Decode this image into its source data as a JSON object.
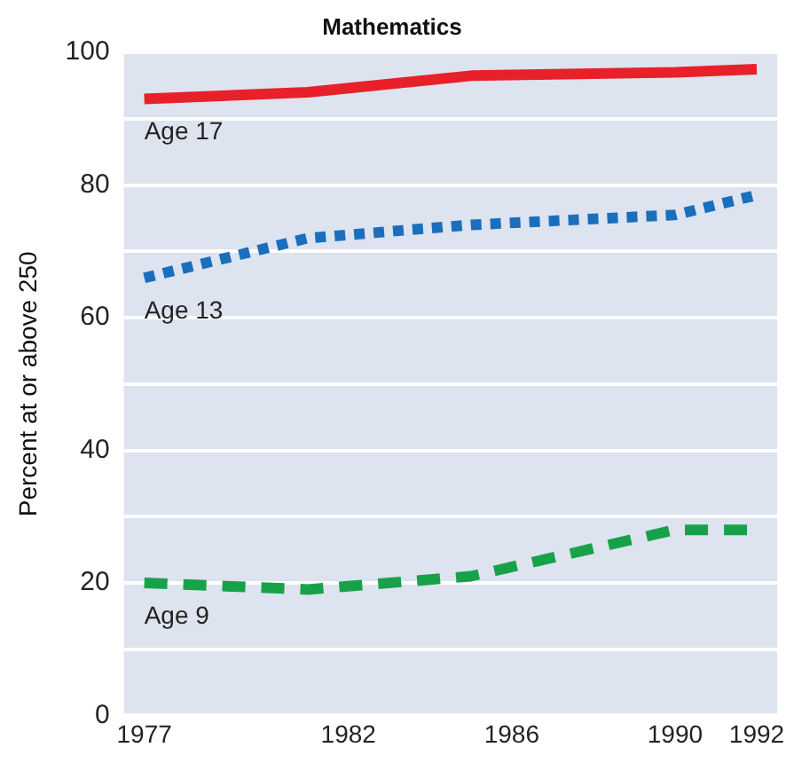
{
  "chart_data": {
    "type": "line",
    "title": "Mathematics",
    "ylabel": "Percent at or above 250",
    "xlim": [
      1976.5,
      1992.5
    ],
    "xticks": [
      1977,
      1982,
      1986,
      1990,
      1992
    ],
    "ylim": [
      0,
      100
    ],
    "yticks": [
      0,
      {
        "value": 10,
        "label": null
      },
      20,
      {
        "value": 30,
        "label": null
      },
      40,
      {
        "value": 50,
        "label": null
      },
      60,
      {
        "value": 70,
        "label": null
      },
      80,
      {
        "value": 90,
        "label": null
      },
      100
    ],
    "grid": "y",
    "legend": false,
    "marker": "none",
    "series": [
      {
        "name": "Age 17",
        "color": "#e8202a",
        "line_style": "solid",
        "x": [
          1977,
          1981,
          1985,
          1990,
          1992
        ],
        "values": [
          93,
          94,
          96.5,
          97,
          97.5
        ]
      },
      {
        "name": "Age 13",
        "color": "#1a6fbd",
        "line_style": "dotted",
        "x": [
          1977,
          1981,
          1985,
          1990,
          1992
        ],
        "values": [
          66,
          72,
          74,
          75.5,
          78.5
        ]
      },
      {
        "name": "Age 9",
        "color": "#17a24a",
        "line_style": "dashed",
        "x": [
          1977,
          1981,
          1985,
          1990,
          1992
        ],
        "values": [
          20,
          19,
          21,
          28,
          28
        ]
      }
    ]
  }
}
